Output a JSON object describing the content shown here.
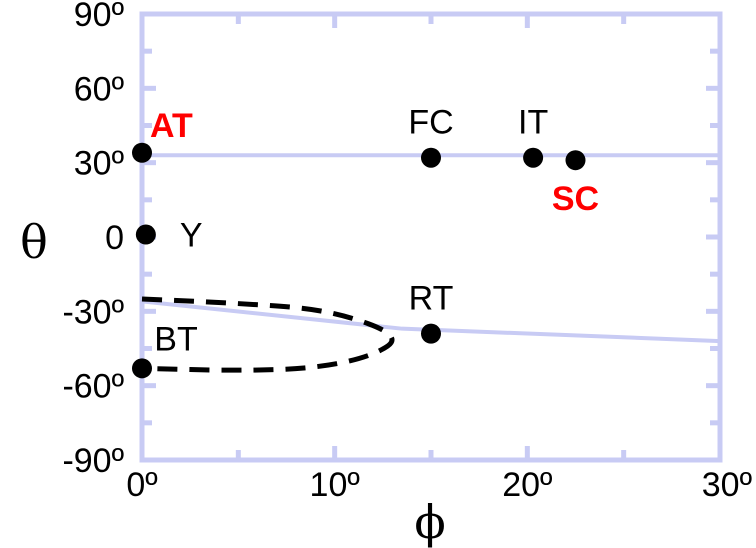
{
  "chart_data": {
    "type": "scatter",
    "title": "",
    "xlabel": "ϕ",
    "ylabel": "θ",
    "xlim": [
      0,
      30
    ],
    "ylim": [
      -90,
      90
    ],
    "x_ticks": [
      {
        "value": 0,
        "label": "0º"
      },
      {
        "value": 10,
        "label": "10º"
      },
      {
        "value": 20,
        "label": "20º"
      },
      {
        "value": 30,
        "label": "30º"
      }
    ],
    "y_ticks": [
      {
        "value": 90,
        "label": "90º"
      },
      {
        "value": 60,
        "label": "60º"
      },
      {
        "value": 30,
        "label": "30º"
      },
      {
        "value": 0,
        "label": "0"
      },
      {
        "value": -30,
        "label": "-30º"
      },
      {
        "value": -60,
        "label": "-60º"
      },
      {
        "value": -90,
        "label": "-90º"
      }
    ],
    "minor_x_ticks": [
      5,
      15,
      25
    ],
    "minor_y_ticks": [
      75,
      45,
      15,
      -15,
      -45,
      -75
    ],
    "points": [
      {
        "name": "AT",
        "x": 0,
        "y": 34,
        "color": "#ff0000",
        "bold": true,
        "label_pos": "right-above"
      },
      {
        "name": "Y",
        "x": 0.2,
        "y": 1,
        "color": "#000000",
        "bold": false,
        "label_pos": "right"
      },
      {
        "name": "BT",
        "x": 0,
        "y": -53,
        "color": "#000000",
        "bold": false,
        "label_pos": "above"
      },
      {
        "name": "FC",
        "x": 15,
        "y": 32,
        "color": "#000000",
        "bold": false,
        "label_pos": "above"
      },
      {
        "name": "IT",
        "x": 20.3,
        "y": 32,
        "color": "#000000",
        "bold": false,
        "label_pos": "above"
      },
      {
        "name": "SC",
        "x": 22.5,
        "y": 31,
        "color": "#ff0000",
        "bold": true,
        "label_pos": "below"
      },
      {
        "name": "RT",
        "x": 15,
        "y": -39,
        "color": "#000000",
        "bold": false,
        "label_pos": "above"
      }
    ],
    "lines": [
      {
        "style": "solid",
        "color": "#c8cbf4",
        "x": [
          0,
          30
        ],
        "y": [
          33,
          33
        ]
      },
      {
        "style": "solid",
        "color": "#c8cbf4",
        "x": [
          0,
          13.5,
          30
        ],
        "y": [
          -26,
          -37,
          -42
        ]
      },
      {
        "style": "dashed",
        "color": "#000000",
        "x": [
          0,
          6,
          10,
          13.5,
          12,
          9,
          5,
          0
        ],
        "y": [
          -25,
          -27,
          -30,
          -40,
          -48,
          -53,
          -54,
          -53
        ]
      }
    ],
    "grid": false,
    "frame_color": "#c8cbf4"
  }
}
